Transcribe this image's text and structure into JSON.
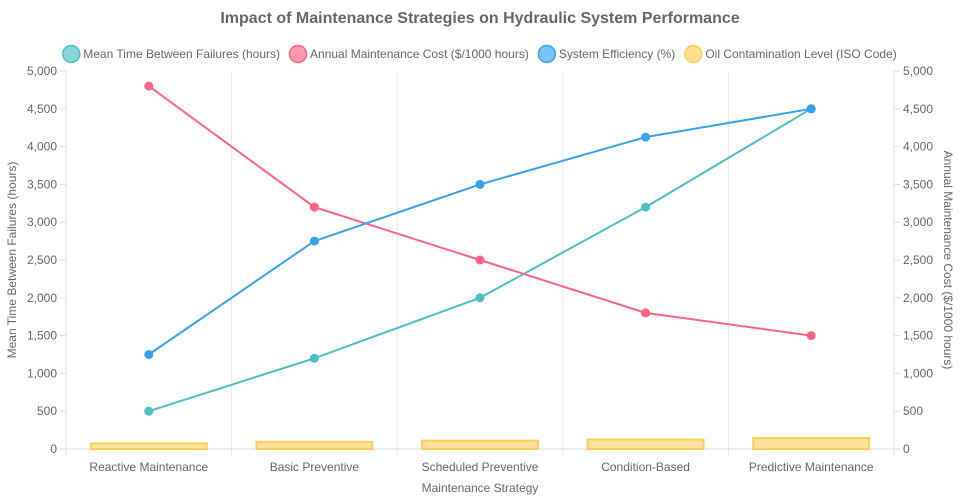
{
  "chart_data": {
    "type": "line",
    "title": "Impact of Maintenance Strategies on Hydraulic System Performance",
    "xlabel": "Maintenance Strategy",
    "ylabel": "Mean Time Between Failures (hours)",
    "y2label": "Annual Maintenance Cost ($/1000 hours)",
    "categories": [
      "Reactive Maintenance",
      "Basic Preventive",
      "Scheduled Preventive",
      "Condition-Based",
      "Predictive Maintenance"
    ],
    "ylim": [
      0,
      5000
    ],
    "y2lim": [
      0,
      5000
    ],
    "yticks": [
      "0",
      "500",
      "1,000",
      "1,500",
      "2,000",
      "2,500",
      "3,000",
      "3,500",
      "4,000",
      "4,500",
      "5,000"
    ],
    "grid": true,
    "legend_position": "top",
    "series": [
      {
        "name": "Mean Time Between Failures (hours)",
        "kind": "line",
        "axis": "left",
        "color": "#4bc0c0",
        "values": [
          500,
          1200,
          2000,
          3200,
          4500
        ]
      },
      {
        "name": "Annual Maintenance Cost ($/1000 hours)",
        "kind": "line",
        "axis": "right",
        "color": "#ff6384",
        "values": [
          4800,
          3200,
          2500,
          1800,
          1500
        ]
      },
      {
        "name": "System Efficiency (%)",
        "kind": "line",
        "axis": "left",
        "color": "#36a2eb",
        "values": [
          1250,
          2750,
          3500,
          4125,
          4500
        ]
      },
      {
        "name": "Oil Contamination Level (ISO Code)",
        "kind": "bar",
        "axis": "left",
        "color": "#ffcd56",
        "values": [
          75,
          95,
          110,
          125,
          145
        ]
      }
    ]
  }
}
